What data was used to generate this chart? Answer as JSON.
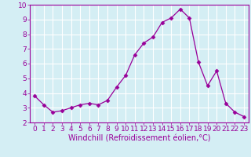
{
  "x": [
    0,
    1,
    2,
    3,
    4,
    5,
    6,
    7,
    8,
    9,
    10,
    11,
    12,
    13,
    14,
    15,
    16,
    17,
    18,
    19,
    20,
    21,
    22,
    23
  ],
  "y": [
    3.8,
    3.2,
    2.7,
    2.8,
    3.0,
    3.2,
    3.3,
    3.2,
    3.5,
    4.4,
    5.2,
    6.6,
    7.4,
    7.8,
    8.8,
    9.1,
    9.7,
    9.1,
    6.1,
    4.5,
    5.5,
    3.3,
    2.7,
    2.4
  ],
  "line_color": "#990099",
  "marker": "D",
  "marker_size": 2.5,
  "bg_color": "#d4eef4",
  "grid_color": "#ffffff",
  "xlabel": "Windchill (Refroidissement éolien,°C)",
  "xlim": [
    -0.5,
    23.5
  ],
  "ylim": [
    2,
    10
  ],
  "yticks": [
    2,
    3,
    4,
    5,
    6,
    7,
    8,
    9,
    10
  ],
  "xticks": [
    0,
    1,
    2,
    3,
    4,
    5,
    6,
    7,
    8,
    9,
    10,
    11,
    12,
    13,
    14,
    15,
    16,
    17,
    18,
    19,
    20,
    21,
    22,
    23
  ],
  "tick_color": "#990099",
  "label_color": "#990099",
  "axis_color": "#990099",
  "font_size": 6.5,
  "xlabel_fontsize": 7
}
